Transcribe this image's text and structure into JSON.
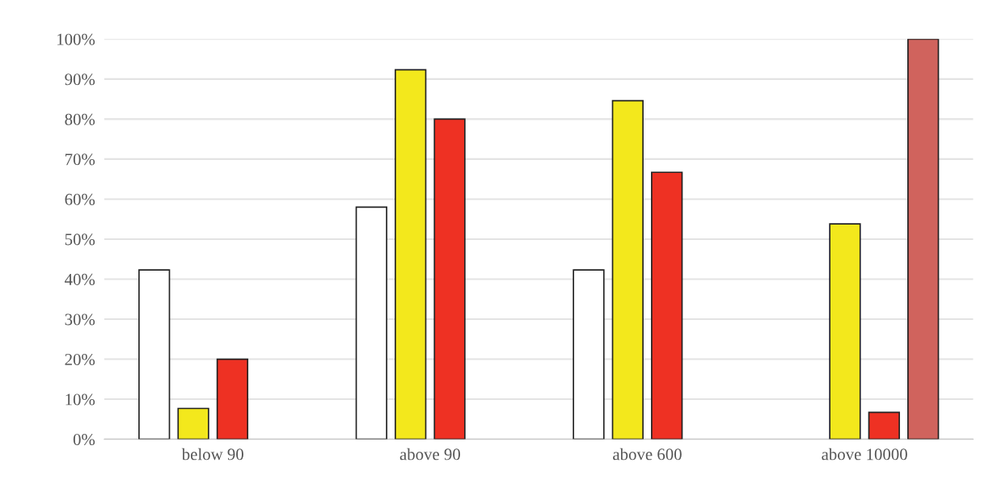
{
  "chart_data": {
    "type": "bar",
    "categories": [
      "below 90",
      "above 90",
      "above 600",
      "above 10000"
    ],
    "series": [
      {
        "color": "#ffffff",
        "values": [
          42.3,
          58,
          42.3,
          null
        ]
      },
      {
        "color": "#f3e81c",
        "values": [
          7.7,
          92.3,
          84.6,
          53.8
        ]
      },
      {
        "color": "#ee3123",
        "values": [
          20,
          80,
          66.7,
          6.7
        ]
      },
      {
        "color": "#d0635d",
        "values": [
          null,
          null,
          null,
          100
        ]
      }
    ],
    "ylim": [
      0,
      100
    ],
    "yticks": [
      {
        "value": 0,
        "label": "0%"
      },
      {
        "value": 10,
        "label": "10%"
      },
      {
        "value": 20,
        "label": "20%"
      },
      {
        "value": 30,
        "label": "30%"
      },
      {
        "value": 40,
        "label": "40%"
      },
      {
        "value": 50,
        "label": "50%"
      },
      {
        "value": 60,
        "label": "60%"
      },
      {
        "value": 70,
        "label": "70%"
      },
      {
        "value": 80,
        "label": "80%"
      },
      {
        "value": 90,
        "label": "90%"
      },
      {
        "value": 100,
        "label": "100%"
      }
    ],
    "grid": "y"
  }
}
